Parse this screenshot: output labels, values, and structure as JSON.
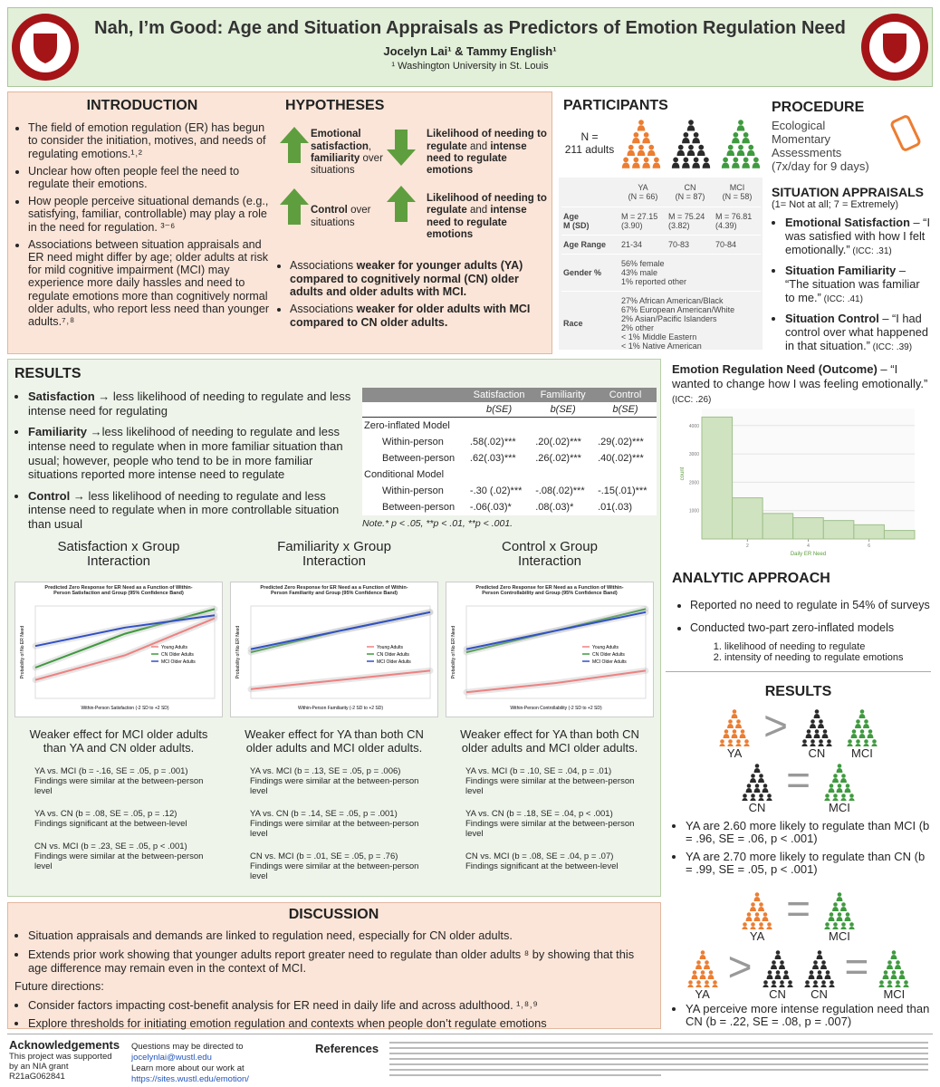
{
  "header": {
    "title": "Nah, I’m Good: Age and Situation Appraisals as Predictors of Emotion Regulation Need",
    "authors": "Jocelyn Lai¹ & Tammy English¹",
    "affiliation": "¹ Washington University in St. Louis"
  },
  "introduction": {
    "heading": "INTRODUCTION",
    "bullets": [
      "The field of emotion regulation (ER) has begun to consider the initiation, motives, and needs of regulating emotions.¹˒²",
      "Unclear how often people feel the need to regulate their emotions.",
      "How people perceive situational demands (e.g., satisfying, familiar, controllable) may play a role in the need for regulation. ³⁻⁶",
      "Associations between situation appraisals and ER need might differ by age; older adults at risk for mild cognitive impairment (MCI) may experience more daily hassles and need to regulate emotions more than cognitively normal older adults, who report less need than younger adults.⁷˒⁸"
    ]
  },
  "hypotheses": {
    "heading": "HYPOTHESES",
    "rows": [
      {
        "left": [
          {
            "bold": "Emotional satisfaction"
          },
          ", ",
          {
            "bold": "familiarity"
          },
          " over situations"
        ],
        "right": [
          {
            "bold": "Likelihood of needing to regulate"
          },
          " and ",
          {
            "bold": "intense need to regulate emotions"
          }
        ]
      },
      {
        "left": [
          {
            "bold": "Control"
          },
          " over situations"
        ],
        "right": [
          {
            "bold": "Likelihood of needing to regulate"
          },
          " and ",
          {
            "bold": "intense need to regulate emotions"
          }
        ]
      }
    ],
    "bullets": [
      [
        "Associations ",
        {
          "bold": "weaker for younger adults (YA) compared to cognitively normal (CN) older adults and older adults with MCI."
        }
      ],
      [
        "Associations ",
        {
          "bold": "weaker for older adults with MCI compared to CN older adults."
        }
      ]
    ]
  },
  "participants": {
    "heading": "PARTICIPANTS",
    "n_label": "N =",
    "n_value": "211 adults",
    "table": {
      "columns": [
        {
          "group": "YA",
          "n": "(N = 66)"
        },
        {
          "group": "CN",
          "n": "(N = 87)"
        },
        {
          "group": "MCI",
          "n": "(N = 58)"
        }
      ],
      "rows": [
        {
          "label": [
            "Age",
            "M (SD)"
          ],
          "cells": [
            [
              "M = 27.15",
              "(3.90)"
            ],
            [
              "M = 75.24",
              "(3.82)"
            ],
            [
              "M = 76.81",
              "(4.39)"
            ]
          ]
        },
        {
          "label": [
            "Age Range"
          ],
          "cells": [
            [
              "21-34"
            ],
            [
              "70-83"
            ],
            [
              "70-84"
            ]
          ]
        },
        {
          "label": [
            "Gender %"
          ],
          "span": [
            "56% female",
            "43% male",
            "1% reported other"
          ]
        },
        {
          "label": [
            "Race"
          ],
          "span": [
            "27% African American/Black",
            "67% European American/White",
            "2% Asian/Pacific Islanders",
            "2% other",
            "< 1% Middle Eastern",
            "< 1% Native American"
          ]
        }
      ]
    }
  },
  "procedure": {
    "heading": "PROCEDURE",
    "text": "Ecological Momentary Assessments (7x/day for 9 days)"
  },
  "situation_appraisals": {
    "heading": "SITUATION APPRAISALS",
    "scale": "(1= Not at all; 7 = Extremely)",
    "items": [
      {
        "lead": "Emotional Satisfaction",
        "text": " – “I was satisfied with how I felt emotionally.”",
        "icc": " (ICC: .31)"
      },
      {
        "lead": "Situation Familiarity",
        "text": " – “The situation was familiar to me.”",
        "icc": " (ICC: .41)"
      },
      {
        "lead": "Situation Control",
        "text": " – “I had control over what happened in that situation.”",
        "icc": " (ICC: .39)"
      }
    ]
  },
  "results": {
    "heading": "RESULTS",
    "bullets": [
      {
        "lead": "Satisfaction →",
        "text": " less likelihood of needing to regulate and less intense need for regulating"
      },
      {
        "lead": "Familiarity →",
        "text": "less likelihood of needing to regulate and less intense need to regulate when in more familiar situation than usual; however, people who tend to be in more familiar situations reported more intense need to regulate"
      },
      {
        "lead": "Control →",
        "text": " less likelihood of needing to regulate and less intense need to regulate when in more controllable situation than usual"
      }
    ],
    "table": {
      "columns": [
        "Satisfaction",
        "Familiarity",
        "Control"
      ],
      "subheader": [
        "b(SE)",
        "b(SE)",
        "b(SE)"
      ],
      "sections": [
        {
          "label": "Zero-inflated Model",
          "rows": [
            {
              "label": "Within-person",
              "cells": [
                ".58(.02)***",
                ".20(.02)***",
                ".29(.02)***"
              ]
            },
            {
              "label": "Between-person",
              "cells": [
                ".62(.03)***",
                ".26(.02)***",
                ".40(.02)***"
              ]
            }
          ]
        },
        {
          "label": "Conditional Model",
          "rows": [
            {
              "label": "Within-person",
              "cells": [
                "-.30 (.02)***",
                "-.08(.02)***",
                "-.15(.01)***"
              ]
            },
            {
              "label": "Between-person",
              "cells": [
                "-.06(.03)*",
                ".08(.03)*",
                ".01(.03)"
              ]
            }
          ]
        }
      ],
      "note": "Note.* p < .05, **p < .01, **p < .001."
    },
    "plots": [
      {
        "heading": "Satisfaction x Group Interaction",
        "type": "line",
        "title": "Predicted Zero Response for ER Need as a Function of Within-Person Satisfaction and Group (95% Confidence Band)",
        "x_label": "Within-Person Satisfaction (-2 SD to +2 SD)",
        "y_label": "Probability of No ER Need",
        "x": [
          -2,
          0,
          2
        ],
        "xlim": [
          -2,
          2
        ],
        "ylim": [
          0.05,
          0.35
        ],
        "series": [
          {
            "name": "Young Adults",
            "color": "#f08080",
            "values": [
              0.11,
              0.19,
              0.31
            ]
          },
          {
            "name": "CN Older Adults",
            "color": "#3d9a3d",
            "values": [
              0.15,
              0.26,
              0.34
            ]
          },
          {
            "name": "MCI Older Adults",
            "color": "#3050c8",
            "values": [
              0.22,
              0.28,
              0.32
            ]
          }
        ],
        "caption": "Weaker effect for MCI older adults than YA and CN older adults.",
        "stats": [
          {
            "stat": "YA vs. MCI (b = -.16, SE = .05, p = .001)",
            "note": "Findings were similar at the between-person level"
          },
          {
            "stat": "YA vs. CN (b = .08, SE = .05, p = .12)",
            "note": "Findings significant at the between-level"
          },
          {
            "stat": "CN vs. MCI (b = .23, SE = .05, p < .001)",
            "note": "Findings were similar at the between-person level"
          }
        ]
      },
      {
        "heading": "Familiarity x Group Interaction",
        "type": "line",
        "title": "Predicted Zero Response for ER Need as a Function of Within-Person Familiarity and Group (95% Confidence Band)",
        "x_label": "Within-Person Familiarity (-2 SD to +2 SD)",
        "y_label": "Probability of No ER Need",
        "x": [
          -2,
          0,
          2
        ],
        "xlim": [
          -2,
          2
        ],
        "ylim": [
          0.05,
          0.35
        ],
        "series": [
          {
            "name": "Young Adults",
            "color": "#f08080",
            "values": [
              0.08,
              0.11,
              0.14
            ]
          },
          {
            "name": "CN Older Adults",
            "color": "#3d9a3d",
            "values": [
              0.2,
              0.27,
              0.33
            ]
          },
          {
            "name": "MCI Older Adults",
            "color": "#3050c8",
            "values": [
              0.21,
              0.27,
              0.33
            ]
          }
        ],
        "caption": "Weaker effect for YA than both CN older adults and MCI older adults.",
        "stats": [
          {
            "stat": "YA vs. MCI (b = .13, SE = .05, p = .006)",
            "note": "Findings were similar at the between-person level"
          },
          {
            "stat": "YA vs. CN (b = .14, SE = .05, p = .001)",
            "note": "Findings were similar at the between-person level"
          },
          {
            "stat": "CN vs. MCI (b = .01, SE = .05, p = .76)",
            "note": "Findings were similar at the between-person level"
          }
        ]
      },
      {
        "heading": "Control x Group Interaction",
        "type": "line",
        "title": "Predicted Zero Response for ER Need as a Function of Within-Person Controllability and Group (95% Confidence Band)",
        "x_label": "Within-Person Controllability (-2 SD to +2 SD)",
        "y_label": "Probability of No ER Need",
        "x": [
          -2,
          0,
          2
        ],
        "xlim": [
          -2,
          2
        ],
        "ylim": [
          0.05,
          0.35
        ],
        "series": [
          {
            "name": "Young Adults",
            "color": "#f08080",
            "values": [
              0.07,
              0.1,
              0.14
            ]
          },
          {
            "name": "CN Older Adults",
            "color": "#3d9a3d",
            "values": [
              0.2,
              0.27,
              0.34
            ]
          },
          {
            "name": "MCI Older Adults",
            "color": "#3050c8",
            "values": [
              0.21,
              0.27,
              0.33
            ]
          }
        ],
        "caption": "Weaker effect for YA than both CN older adults and MCI older adults.",
        "stats": [
          {
            "stat": "YA vs. MCI (b = .10, SE = .04, p = .01)",
            "note": "Findings were similar at the between-person level"
          },
          {
            "stat": "YA vs. CN (b = .18, SE = .04, p < .001)",
            "note": "Findings were similar at the between-person level"
          },
          {
            "stat": "CN vs. MCI (b = .08, SE = .04, p = .07)",
            "note": "Findings significant at the between-level"
          }
        ]
      }
    ]
  },
  "outcome": {
    "lead": "Emotion Regulation Need (Outcome)",
    "text": " – “I wanted to change how I was feeling emotionally.”",
    "icc": " (ICC: .26)",
    "histogram": {
      "type": "histogram",
      "x_label": "Daily ER Need",
      "y_label": "count",
      "color": "#cfe3c0",
      "bins": [
        0.5,
        1.5,
        2.5,
        3.5,
        4.5,
        5.5,
        6.5,
        7.5
      ],
      "counts": [
        4300,
        1450,
        900,
        750,
        650,
        500,
        300
      ],
      "xlim": [
        0.5,
        7.5
      ],
      "xticks": [
        2,
        4,
        6
      ],
      "ylim": [
        0,
        4600
      ],
      "yticks": [
        1000,
        2000,
        3000,
        4000
      ]
    }
  },
  "analytic_approach": {
    "heading": "ANALYTIC APPROACH",
    "bullets": [
      "Reported no need to regulate in 54% of surveys",
      "Conducted two-part zero-inflated models"
    ],
    "steps": [
      "likelihood of needing to regulate",
      "intensity of needing to regulate emotions"
    ]
  },
  "results_summary": {
    "heading": "RESULTS",
    "diagram_1": [
      {
        "label": "YA",
        "color": "#ec7d31"
      },
      {
        "symbol": ">"
      },
      {
        "label": "CN",
        "color": "#2a2a2a"
      },
      {
        "label": "MCI",
        "color": "#3f9a3f"
      }
    ],
    "diagram_2": [
      {
        "label": "CN",
        "color": "#2a2a2a"
      },
      {
        "symbol": "="
      },
      {
        "label": "MCI",
        "color": "#3f9a3f"
      }
    ],
    "bullets_1": [
      "YA are 2.60 more likely to regulate than MCI (b = .96, SE = .06, p < .001)",
      "YA are 2.70 more likely to regulate than CN (b = .99, SE = .05, p < .001)"
    ],
    "diagram_3": [
      {
        "label": "YA",
        "color": "#ec7d31"
      },
      {
        "symbol": "="
      },
      {
        "label": "MCI",
        "color": "#3f9a3f"
      }
    ],
    "diagram_4": [
      {
        "label": "YA",
        "color": "#ec7d31"
      },
      {
        "symbol": ">"
      },
      {
        "label": "CN",
        "color": "#2a2a2a"
      },
      {
        "label": "CN",
        "color": "#2a2a2a"
      },
      {
        "symbol": "="
      },
      {
        "label": "MCI",
        "color": "#3f9a3f"
      }
    ],
    "bullets_2": [
      "YA perceive more intense regulation need than CN (b = .22, SE = .08, p = .007)"
    ]
  },
  "discussion": {
    "heading": "DISCUSSION",
    "bullets": [
      "Situation appraisals and demands are linked to regulation need, especially for CN older adults.",
      "Extends prior work showing that younger adults report greater need to regulate than older adults ⁸ by showing that this age difference may remain even in the context of MCI."
    ],
    "future_label": "Future directions:",
    "future": [
      "Consider factors impacting cost-benefit analysis for ER need in daily life and across adulthood. ¹˒⁸˒⁹",
      "Explore thresholds for initiating emotion regulation and contexts when people don’t regulate emotions"
    ]
  },
  "footer": {
    "ack_heading": "Acknowledgements",
    "ack_text": "This project was supported by an NIA grant R21aG062841",
    "contact_1": "Questions may be directed to ",
    "email": "jocelynlai@wustl.edu",
    "contact_2": "Learn more about our work at ",
    "url": "https://sites.wustl.edu/emotion/",
    "references_heading": "References"
  }
}
